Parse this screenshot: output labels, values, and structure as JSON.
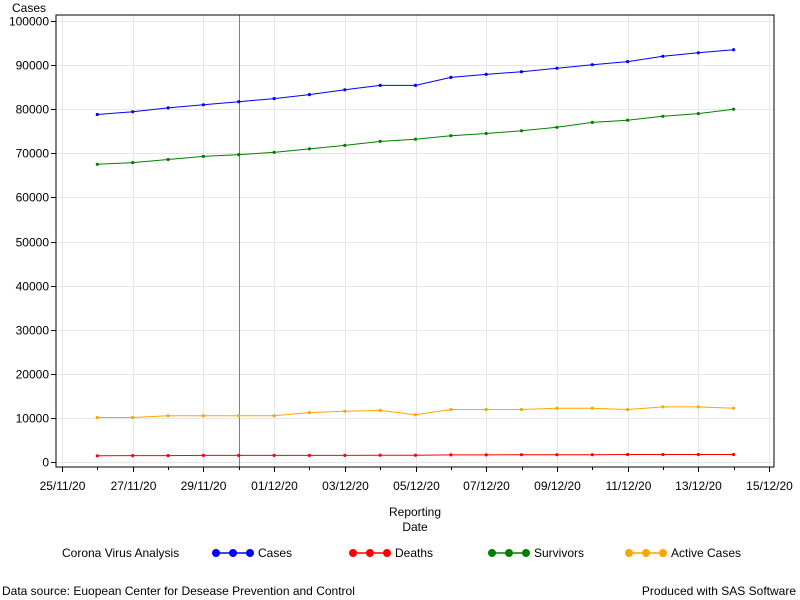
{
  "chart_data": {
    "type": "line",
    "ylabel": "Cases",
    "xlabel_line1": "Reporting",
    "xlabel_line2": "Date",
    "ylim": [
      0,
      100000
    ],
    "yticks": [
      0,
      10000,
      20000,
      30000,
      40000,
      50000,
      60000,
      70000,
      80000,
      90000,
      100000
    ],
    "xlim": [
      "2020-11-25",
      "2020-12-15"
    ],
    "xticks": [
      "2020-11-25",
      "2020-11-27",
      "2020-11-29",
      "2020-12-01",
      "2020-12-03",
      "2020-12-05",
      "2020-12-07",
      "2020-12-09",
      "2020-12-11",
      "2020-12-13",
      "2020-12-15"
    ],
    "xtick_labels": [
      "25/11/20",
      "27/11/20",
      "29/11/20",
      "01/12/20",
      "03/12/20",
      "05/12/20",
      "07/12/20",
      "09/12/20",
      "11/12/20",
      "13/12/20",
      "15/12/20"
    ],
    "reference_line_x": "2020-11-30",
    "grid": true,
    "legend_position": "bottom",
    "legend_title": "Corona Virus Analysis",
    "x": [
      "2020-11-26",
      "2020-11-27",
      "2020-11-28",
      "2020-11-29",
      "2020-11-30",
      "2020-12-01",
      "2020-12-02",
      "2020-12-03",
      "2020-12-04",
      "2020-12-05",
      "2020-12-06",
      "2020-12-07",
      "2020-12-08",
      "2020-12-09",
      "2020-12-10",
      "2020-12-11",
      "2020-12-12",
      "2020-12-13",
      "2020-12-14"
    ],
    "series": [
      {
        "name": "Cases",
        "color": "#0000ff",
        "values": [
          78800,
          79400,
          80300,
          81000,
          81700,
          82400,
          83300,
          84400,
          85400,
          85400,
          87200,
          87900,
          88500,
          89300,
          90100,
          90800,
          92000,
          92800,
          93500
        ]
      },
      {
        "name": "Deaths",
        "color": "#ff0000",
        "values": [
          1400,
          1450,
          1450,
          1500,
          1500,
          1500,
          1500,
          1500,
          1550,
          1550,
          1600,
          1600,
          1650,
          1650,
          1650,
          1700,
          1700,
          1700,
          1700
        ]
      },
      {
        "name": "Survivors",
        "color": "#008000",
        "values": [
          67500,
          67900,
          68600,
          69300,
          69700,
          70200,
          71000,
          71800,
          72700,
          73200,
          74000,
          74500,
          75100,
          75900,
          77000,
          77500,
          78400,
          79000,
          80000
        ]
      },
      {
        "name": "Active Cases",
        "color": "#ffa500",
        "values": [
          10100,
          10100,
          10500,
          10500,
          10500,
          10500,
          11200,
          11500,
          11700,
          10700,
          11900,
          11900,
          11900,
          12200,
          12200,
          11900,
          12500,
          12500,
          12200
        ]
      }
    ]
  },
  "footnote_left": "Data source: Euopean Center for Desease Prevention and Control",
  "footnote_right": "Produced with SAS Software"
}
